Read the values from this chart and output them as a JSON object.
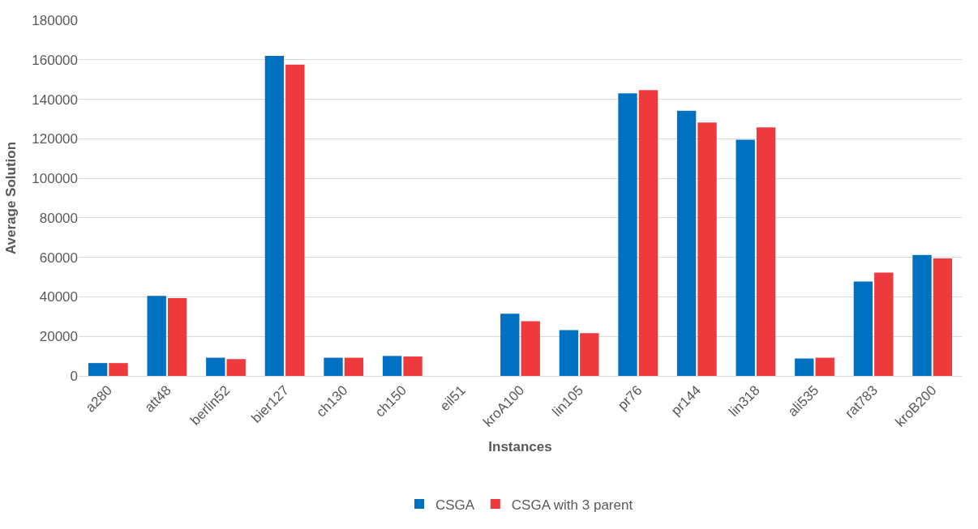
{
  "chart_data": {
    "type": "bar",
    "xlabel": "Instances",
    "ylabel": "Average Solution",
    "categories": [
      "a280",
      "att48",
      "berlin52",
      "bier127",
      "ch130",
      "ch150",
      "eil51",
      "kroA100",
      "lin105",
      "pr76",
      "pr144",
      "lin318",
      "ali535",
      "rat783",
      "kroB200"
    ],
    "series": [
      {
        "name": "CSGA",
        "color": "#0070c0",
        "values": [
          6500,
          40500,
          9200,
          162000,
          9200,
          10100,
          0,
          31500,
          23200,
          143000,
          134200,
          119500,
          8800,
          47800,
          61200
        ]
      },
      {
        "name": "CSGA with 3 parent",
        "color": "#ee3a3d",
        "values": [
          6500,
          39400,
          8500,
          157600,
          9200,
          9800,
          0,
          27700,
          21600,
          144600,
          128200,
          125800,
          9200,
          52300,
          59500
        ]
      }
    ],
    "ylim": [
      0,
      180000
    ],
    "yticks": [
      0,
      20000,
      40000,
      60000,
      80000,
      100000,
      120000,
      140000,
      160000,
      180000
    ],
    "grid": "y",
    "legend": "bottom"
  }
}
